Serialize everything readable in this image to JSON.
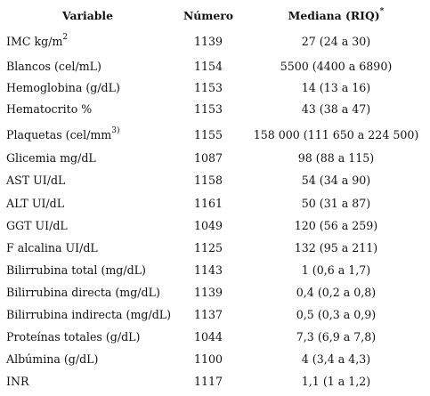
{
  "header": {
    "variable": "Variable",
    "numero": "Número",
    "mediana": "Mediana (RIQ)",
    "mediana_mark": "*"
  },
  "rows": [
    {
      "variable": "IMC kg/m",
      "sup": "2",
      "numero": "1139",
      "mediana": "27 (24 a 30)"
    },
    {
      "variable": "Blancos (cel/mL)",
      "numero": "1154",
      "mediana": "5500 (4400 a 6890)"
    },
    {
      "variable": "Hemoglobina (g/dL)",
      "numero": "1153",
      "mediana": "14 (13 a 16)"
    },
    {
      "variable": "Hematocrito %",
      "numero": "1153",
      "mediana": "43 (38 a 47)"
    },
    {
      "variable": "Plaquetas (cel/mm",
      "sup": "3)",
      "numero": "1155",
      "mediana": "158 000 (111 650 a 224 500)"
    },
    {
      "variable": "Glicemia mg/dL",
      "numero": "1087",
      "mediana": "98 (88 a 115)"
    },
    {
      "variable": "AST UI/dL",
      "numero": "1158",
      "mediana": "54 (34 a 90)"
    },
    {
      "variable": "ALT UI/dL",
      "numero": "1161",
      "mediana": "50 (31 a 87)"
    },
    {
      "variable": "GGT UI/dL",
      "numero": "1049",
      "mediana": "120 (56 a 259)"
    },
    {
      "variable": "F alcalina UI/dL",
      "numero": "1125",
      "mediana": "132 (95 a 211)"
    },
    {
      "variable": "Bilirrubina total (mg/dL)",
      "numero": "1143",
      "mediana": "1 (0,6 a 1,7)"
    },
    {
      "variable": "Bilirrubina directa (mg/dL)",
      "numero": "1139",
      "mediana": "0,4 (0,2 a 0,8)"
    },
    {
      "variable": "Bilirrubina indirecta (mg/dL)",
      "numero": "1137",
      "mediana": "0,5 (0,3 a 0,9)"
    },
    {
      "variable": "Proteínas totales (g/dL)",
      "numero": "1044",
      "mediana": "7,3 (6,9 a 7,8)"
    },
    {
      "variable": "Albúmina (g/dL)",
      "numero": "1100",
      "mediana": "4 (3,4 a 4,3)"
    },
    {
      "variable": "INR",
      "numero": "1117",
      "mediana": "1,1 (1 a 1,2)"
    }
  ]
}
